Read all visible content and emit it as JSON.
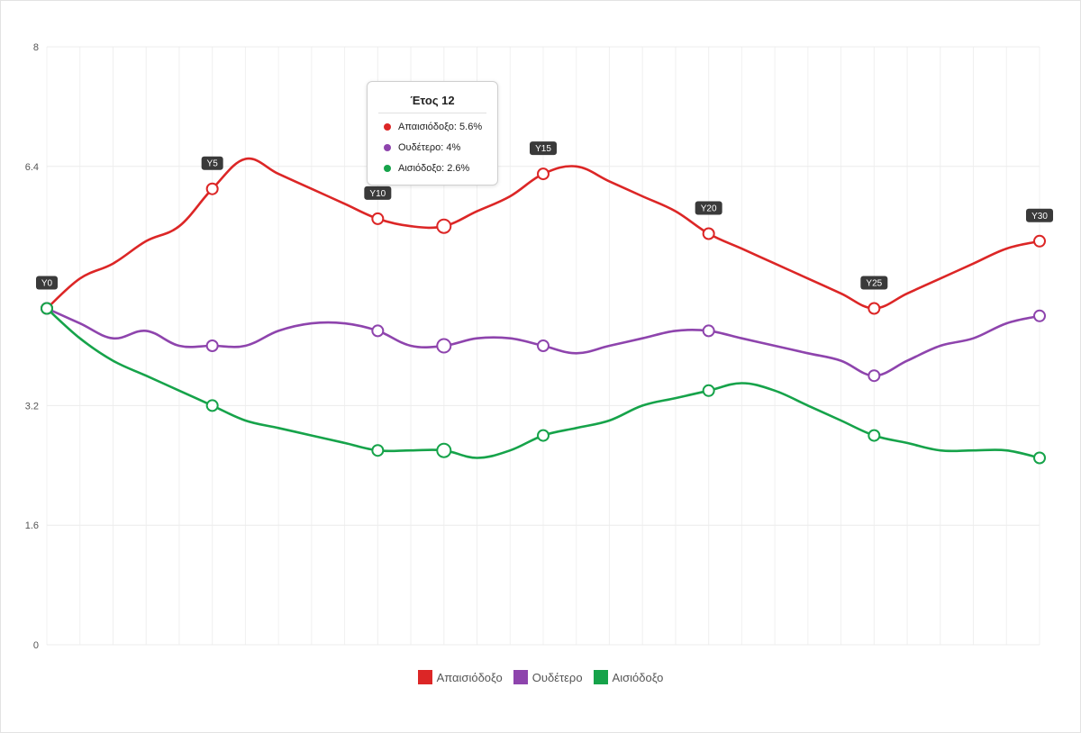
{
  "chart_data": {
    "type": "line",
    "x": [
      0,
      1,
      2,
      3,
      4,
      5,
      6,
      7,
      8,
      9,
      10,
      11,
      12,
      13,
      14,
      15,
      16,
      17,
      18,
      19,
      20,
      21,
      22,
      23,
      24,
      25,
      26,
      27,
      28,
      29,
      30
    ],
    "y_ticks": [
      "0",
      "1.6",
      "3.2",
      "6.4",
      "8"
    ],
    "ylim": [
      0,
      8
    ],
    "grid": true,
    "series": [
      {
        "name": "Απαισιόδοξο",
        "color": "#dc2626",
        "values": [
          4.5,
          4.9,
          5.1,
          5.4,
          5.6,
          6.1,
          6.5,
          6.3,
          6.1,
          5.9,
          5.7,
          5.6,
          5.6,
          5.8,
          6.0,
          6.3,
          6.4,
          6.2,
          6.0,
          5.8,
          5.5,
          5.3,
          5.1,
          4.9,
          4.7,
          4.5,
          4.7,
          4.9,
          5.1,
          5.3,
          5.4
        ]
      },
      {
        "name": "Ουδέτερο",
        "color": "#8e44ad",
        "values": [
          4.5,
          4.3,
          4.1,
          4.2,
          4.0,
          4.0,
          4.0,
          4.2,
          4.3,
          4.3,
          4.2,
          4.0,
          4.0,
          4.1,
          4.1,
          4.0,
          3.9,
          4.0,
          4.1,
          4.2,
          4.2,
          4.1,
          4.0,
          3.9,
          3.8,
          3.6,
          3.8,
          4.0,
          4.1,
          4.3,
          4.4
        ]
      },
      {
        "name": "Αισιόδοξο",
        "color": "#16a34a",
        "values": [
          4.5,
          4.1,
          3.8,
          3.6,
          3.4,
          3.2,
          3.0,
          2.9,
          2.8,
          2.7,
          2.6,
          2.6,
          2.6,
          2.5,
          2.6,
          2.8,
          2.9,
          3.0,
          3.2,
          3.3,
          3.4,
          3.5,
          3.4,
          3.2,
          3.0,
          2.8,
          2.7,
          2.6,
          2.6,
          2.6,
          2.5
        ]
      }
    ],
    "point_tags": [
      {
        "x": 0,
        "label": "Y0"
      },
      {
        "x": 5,
        "label": "Y5"
      },
      {
        "x": 10,
        "label": "Y10"
      },
      {
        "x": 15,
        "label": "Y15"
      },
      {
        "x": 20,
        "label": "Y20"
      },
      {
        "x": 25,
        "label": "Y25"
      },
      {
        "x": 30,
        "label": "Y30"
      }
    ],
    "highlight_x": 12,
    "tooltip": {
      "title": "Έτος 12",
      "rows": [
        "Απαισιόδοξο: 5.6%",
        "Ουδέτερο: 4%",
        "Αισιόδοξο: 2.6%"
      ]
    },
    "legend_position": "bottom"
  },
  "legend": {
    "items": [
      {
        "label": "Απαισιόδοξο",
        "color": "#dc2626"
      },
      {
        "label": "Ουδέτερο",
        "color": "#8e44ad"
      },
      {
        "label": "Αισιόδοξο",
        "color": "#16a34a"
      }
    ]
  }
}
